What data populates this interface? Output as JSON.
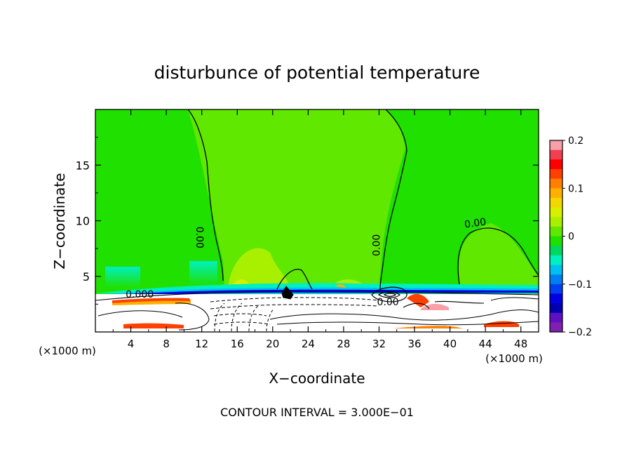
{
  "chart_data": {
    "type": "heatmap",
    "title": "disturbunce of potential temperature",
    "xlabel": "X−coordinate",
    "ylabel": "Z−coordinate",
    "x_unit_left": "(×1000 m)",
    "x_unit_right": "(×1000 m)",
    "xlim": [
      0,
      50
    ],
    "ylim": [
      0,
      20
    ],
    "x_ticks": [
      4,
      8,
      12,
      16,
      20,
      24,
      28,
      32,
      36,
      40,
      44,
      48
    ],
    "x_tick_labels": [
      "4",
      "8",
      "12",
      "16",
      "20",
      "24",
      "28",
      "32",
      "36",
      "40",
      "44",
      "48"
    ],
    "y_ticks": [
      5,
      10,
      15
    ],
    "y_tick_labels": [
      "5",
      "10",
      "15"
    ],
    "colorbar": {
      "min": -0.2,
      "max": 0.2,
      "tick_values": [
        0.2,
        0.1,
        0,
        -0.1,
        -0.2
      ],
      "tick_labels": [
        "0.2",
        "0.1",
        "0",
        "−0.1",
        "−0.2"
      ],
      "colors": [
        "#f8a0a8",
        "#f04050",
        "#ff0000",
        "#ff4000",
        "#ff8000",
        "#ffb000",
        "#f0d800",
        "#d8f000",
        "#a8f000",
        "#60e800",
        "#20e000",
        "#00d860",
        "#00f0c0",
        "#00c0f0",
        "#0080f0",
        "#0040f0",
        "#0000e0",
        "#0000b0",
        "#6010c0",
        "#8020b0"
      ]
    },
    "contour_labels": [
      {
        "text": "0.00",
        "x": 11.4,
        "y": 8.5,
        "rotate": 90
      },
      {
        "text": "0.00",
        "x": 32.1,
        "y": 7.8,
        "rotate": -90
      },
      {
        "text": "0.00",
        "x": 42.9,
        "y": 9.5,
        "rotate": -8
      },
      {
        "text": "0.00",
        "x": 33.0,
        "y": 2.4,
        "rotate": 0
      },
      {
        "text": "0.000",
        "x": 5.0,
        "y": 3.1,
        "rotate": 0
      }
    ],
    "footer": "CONTOUR INTERVAL = 3.000E−01"
  }
}
